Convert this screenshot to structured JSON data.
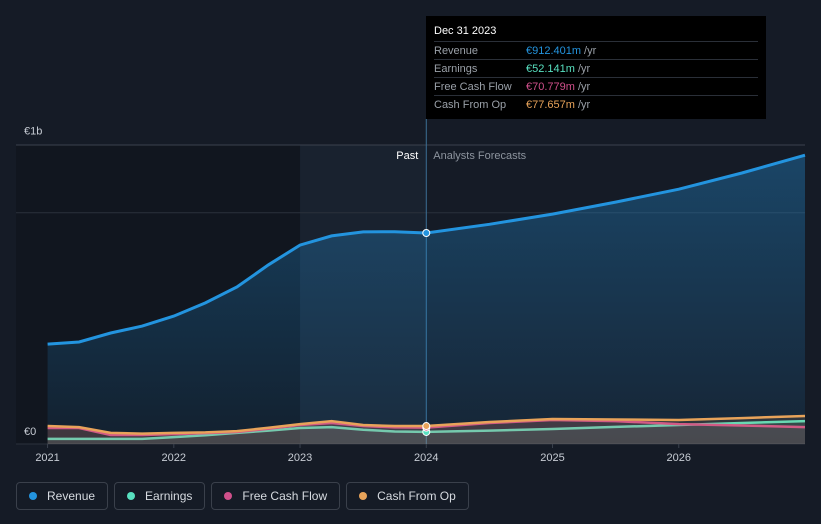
{
  "chart_data": {
    "type": "line",
    "x": [
      2021,
      2021.25,
      2021.5,
      2021.75,
      2022,
      2022.25,
      2022.5,
      2022.75,
      2023,
      2023.25,
      2023.5,
      2023.75,
      2024,
      2024.5,
      2025,
      2025.5,
      2026,
      2026.5,
      2027
    ],
    "series": [
      {
        "name": "Revenue",
        "color": "#2394df",
        "values": [
          432,
          441,
          480,
          510,
          553,
          610,
          679,
          775,
          860,
          900,
          917,
          918,
          912.401,
          950,
          994,
          1046,
          1102,
          1172,
          1249
        ]
      },
      {
        "name": "Earnings",
        "color": "#58e0c0",
        "values": [
          22,
          22,
          22,
          22,
          30,
          38,
          48,
          58,
          69,
          73,
          62,
          54,
          52.141,
          58,
          65,
          74,
          82,
          91,
          99
        ]
      },
      {
        "name": "Free Cash Flow",
        "color": "#d0508b",
        "values": [
          69,
          69,
          39,
          39,
          43,
          47,
          52,
          66,
          82,
          91,
          78,
          72,
          70.779,
          91,
          104,
          99,
          86,
          80,
          73
        ]
      },
      {
        "name": "Cash From Op",
        "color": "#e8a35a",
        "values": [
          78,
          73,
          48,
          45,
          48,
          50,
          56,
          70,
          86,
          99,
          82,
          78,
          77.657,
          95,
          108,
          106,
          104,
          112,
          121
        ]
      }
    ],
    "xlim": [
      2020.75,
      2027
    ],
    "xticks": [
      2021,
      2022,
      2023,
      2024,
      2025,
      2026
    ],
    "ylim": [
      0,
      1293
    ],
    "yticks": [
      {
        "value": 0,
        "label": "€0"
      },
      {
        "value": 1000,
        "label": "€1b"
      }
    ],
    "forecast_start": 2024,
    "highlight": [
      2023,
      2024
    ],
    "past_label": "Past",
    "forecast_label": "Analysts Forecasts",
    "tooltip": {
      "date": "Dec 31 2023",
      "values": [
        912.401,
        52.141,
        70.779,
        77.657
      ],
      "value_labels": [
        "€912.401m",
        "€52.141m",
        "€70.779m",
        "€77.657m"
      ],
      "unit": "/yr"
    }
  }
}
